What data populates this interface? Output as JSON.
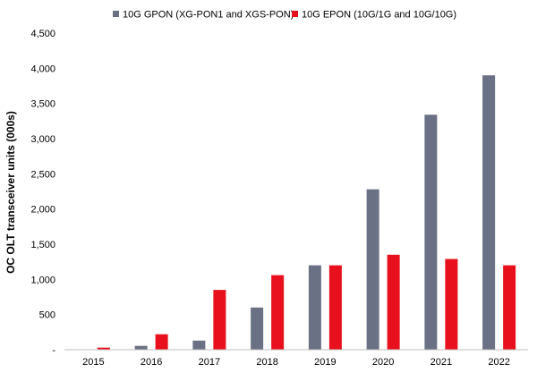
{
  "chart_data": {
    "type": "bar",
    "title": "",
    "xlabel": "",
    "ylabel": "OC OLT transceiver units (000s)",
    "categories": [
      "2015",
      "2016",
      "2017",
      "2018",
      "2019",
      "2020",
      "2021",
      "2022"
    ],
    "series": [
      {
        "name": "10G GPON (XG-PON1 and XGS-PON)",
        "color": "#6b7185",
        "values": [
          0,
          55,
          130,
          600,
          1200,
          2280,
          3340,
          3900
        ]
      },
      {
        "name": "10G EPON (10G/1G and 10G/10G)",
        "color": "#e8101c",
        "values": [
          30,
          220,
          850,
          1060,
          1200,
          1350,
          1290,
          1200
        ]
      }
    ],
    "ylim": [
      0,
      4500
    ],
    "yticks": [
      0,
      500,
      1000,
      1500,
      2000,
      2500,
      3000,
      3500,
      4000,
      4500
    ],
    "ytick_labels": [
      "-",
      "500",
      "1,000",
      "1,500",
      "2,000",
      "2,500",
      "3,000",
      "3,500",
      "4,000",
      "4,500"
    ],
    "grid": false,
    "legend_position": "top"
  }
}
